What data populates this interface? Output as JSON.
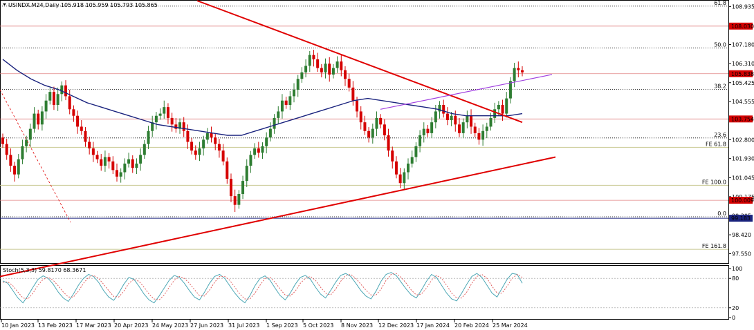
{
  "header": {
    "title": "USINDX.M24,Daily  105.918 105.959 105.793 105.865",
    "indicator": "Stoch(5,3,3) 59.8170 68.3671"
  },
  "colors": {
    "bull": "#2e7d32",
    "bear": "#d50000",
    "ma": "#1a237e",
    "trend": "#e00000",
    "channel": "#a040e0",
    "fib": "#000000",
    "hline": "#e08080",
    "fe": "#c8c890",
    "stoch_main": "#4ca7b5",
    "stoch_signal": "#e06060"
  },
  "chart_data": {
    "type": "candlestick",
    "symbol": "USINDX.M24",
    "timeframe": "Daily",
    "ohlc": {
      "open": 105.918,
      "high": 105.959,
      "low": 105.793,
      "close": 105.865
    },
    "x_labels": [
      "10 Jan 2023",
      "13 Feb 2023",
      "17 Mar 2023",
      "20 Apr 2023",
      "24 May 2023",
      "27 Jun 2023",
      "31 Jul 2023",
      "1 Sep 2023",
      "5 Oct 2023",
      "8 Nov 2023",
      "12 Dec 2023",
      "17 Jan 2024",
      "20 Feb 2024",
      "25 Mar 2024"
    ],
    "ylim": [
      97.12,
      109.2
    ],
    "y_ticks": [
      108.935,
      107.18,
      106.31,
      105.425,
      104.555,
      102.8,
      101.93,
      101.045,
      100.175,
      99.305,
      98.42,
      97.55
    ],
    "y_tick_labels": [
      "108.935",
      "107.180",
      "106.310",
      "105.425",
      "104.555",
      "102.800",
      "101.930",
      "101.045",
      "100.175",
      "99.305",
      "98.420",
      "97.550"
    ],
    "price_tags": [
      {
        "value": 108.03,
        "label": "108.030",
        "color": "#d50000"
      },
      {
        "value": 105.838,
        "label": "105.838",
        "color": "#d50000"
      },
      {
        "value": 103.754,
        "label": "103.754",
        "color": "#d50000"
      },
      {
        "value": 100.009,
        "label": "100.009",
        "color": "#d50000"
      },
      {
        "value": 99.183,
        "label": "99.183",
        "color": "#1a237e"
      }
    ],
    "fib_levels": [
      {
        "label": "61.8",
        "value": 108.95
      },
      {
        "label": "50.0",
        "value": 107.02
      },
      {
        "label": "38.2",
        "value": 105.12
      },
      {
        "label": "23.6",
        "value": 102.88
      },
      {
        "label": "0.0",
        "value": 99.25
      }
    ],
    "fe_levels": [
      {
        "label": "FE 61.8",
        "value": 102.45
      },
      {
        "label": "FE 100.0",
        "value": 100.7
      },
      {
        "label": "FE 161.8",
        "value": 97.75
      }
    ],
    "closes": [
      102.6,
      102.1,
      101.6,
      101.2,
      101.9,
      102.5,
      102.8,
      103.3,
      104.0,
      103.5,
      104.1,
      104.6,
      105.0,
      104.4,
      104.9,
      105.3,
      104.8,
      104.2,
      103.9,
      103.4,
      103.2,
      102.7,
      102.4,
      102.1,
      101.9,
      101.6,
      102.0,
      101.8,
      101.4,
      101.1,
      101.3,
      101.7,
      101.9,
      101.5,
      101.7,
      102.1,
      102.6,
      103.2,
      103.6,
      103.9,
      104.0,
      104.3,
      103.8,
      103.5,
      103.3,
      103.6,
      103.2,
      102.7,
      102.3,
      102.1,
      102.4,
      102.8,
      103.1,
      102.9,
      102.6,
      102.3,
      101.8,
      101.0,
      100.2,
      99.8,
      100.3,
      100.9,
      101.6,
      102.1,
      102.4,
      102.2,
      102.5,
      102.9,
      103.3,
      103.8,
      104.1,
      104.6,
      104.4,
      104.8,
      105.1,
      105.6,
      105.9,
      106.2,
      106.7,
      106.5,
      106.1,
      105.9,
      106.3,
      105.8,
      106.1,
      106.4,
      106.0,
      105.6,
      105.2,
      104.6,
      104.1,
      103.6,
      103.2,
      102.9,
      103.3,
      103.8,
      103.5,
      103.0,
      102.3,
      101.8,
      101.2,
      100.8,
      101.3,
      101.7,
      102.0,
      102.5,
      103.0,
      103.3,
      103.1,
      103.6,
      104.1,
      104.4,
      104.0,
      103.7,
      103.9,
      103.5,
      103.1,
      103.6,
      103.9,
      103.4,
      103.1,
      102.8,
      103.2,
      103.4,
      103.8,
      104.2,
      104.4,
      104.0,
      104.7,
      105.5,
      106.1,
      106.0,
      105.9
    ],
    "ma_values": [
      106.5,
      106.0,
      105.6,
      105.3,
      105.1,
      104.8,
      104.5,
      104.3,
      104.1,
      103.9,
      103.7,
      103.5,
      103.4,
      103.3,
      103.2,
      103.1,
      103.0,
      103.0,
      103.2,
      103.4,
      103.6,
      103.8,
      104.0,
      104.2,
      104.4,
      104.6,
      104.7,
      104.6,
      104.5,
      104.4,
      104.3,
      104.2,
      104.0,
      103.9,
      103.9,
      103.9,
      103.9,
      104.0
    ],
    "trendlines": [
      {
        "name": "downtrend",
        "from": [
          "Jan 2023",
          109.5
        ],
        "to": [
          "Apr 2024",
          103.6
        ]
      },
      {
        "name": "uptrend",
        "from": [
          "Jan 2023",
          96.5
        ],
        "to": [
          "Apr 2024",
          102.0
        ]
      },
      {
        "name": "channel",
        "from": [
          "Dec 2023",
          104.2
        ],
        "to": [
          "Apr 2024",
          105.8
        ]
      }
    ],
    "stoch": {
      "y_ticks": [
        100,
        80,
        20,
        0
      ],
      "k_values": [
        75,
        70,
        55,
        40,
        30,
        45,
        62,
        78,
        85,
        80,
        68,
        52,
        40,
        33,
        48,
        66,
        80,
        88,
        84,
        72,
        55,
        42,
        35,
        50,
        68,
        82,
        78,
        64,
        48,
        36,
        30,
        44,
        60,
        76,
        86,
        82,
        70,
        55,
        42,
        36,
        52,
        70,
        84,
        88,
        80,
        65,
        50,
        38,
        30,
        45,
        65,
        80,
        85,
        76,
        60,
        45,
        36,
        50,
        68,
        82,
        86,
        78,
        62,
        48,
        40,
        55,
        72,
        86,
        90,
        84,
        70,
        55,
        44,
        38,
        54,
        74,
        88,
        92,
        86,
        72,
        58,
        46,
        40,
        56,
        74,
        88,
        82,
        66,
        50,
        38,
        34,
        50,
        68,
        84,
        90,
        82,
        66,
        50,
        42,
        60,
        78,
        90,
        88,
        70
      ],
      "d_values": [
        72,
        73,
        65,
        52,
        40,
        38,
        50,
        66,
        78,
        82,
        76,
        65,
        52,
        42,
        42,
        54,
        70,
        82,
        86,
        80,
        68,
        55,
        43,
        42,
        54,
        70,
        78,
        74,
        62,
        48,
        38,
        36,
        46,
        62,
        76,
        84,
        80,
        70,
        57,
        45,
        44,
        56,
        72,
        84,
        84,
        76,
        62,
        48,
        38,
        38,
        50,
        66,
        80,
        82,
        72,
        58,
        46,
        44,
        54,
        70,
        80,
        84,
        76,
        62,
        50,
        46,
        58,
        74,
        86,
        88,
        80,
        68,
        56,
        46,
        46,
        58,
        76,
        88,
        90,
        82,
        70,
        56,
        46,
        48,
        60,
        76,
        86,
        80,
        66,
        50,
        40,
        40,
        52,
        70,
        84,
        88,
        80,
        64,
        50,
        50,
        64,
        80,
        88,
        82
      ]
    }
  }
}
